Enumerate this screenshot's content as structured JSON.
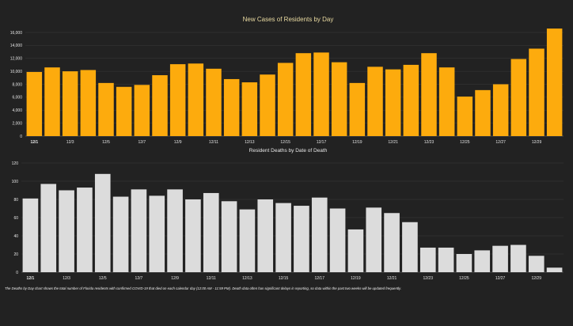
{
  "colors": {
    "cases_bar": "#fdab0d",
    "deaths_bar": "#dcdcdc"
  },
  "chart_data": [
    {
      "type": "bar",
      "title": "New Cases of Residents by Day",
      "categories": [
        "12/1",
        "12/2",
        "12/3",
        "12/4",
        "12/5",
        "12/6",
        "12/7",
        "12/8",
        "12/9",
        "12/10",
        "12/11",
        "12/12",
        "12/13",
        "12/14",
        "12/15",
        "12/16",
        "12/17",
        "12/18",
        "12/19",
        "12/20",
        "12/21",
        "12/22",
        "12/23",
        "12/24",
        "12/25",
        "12/26",
        "12/27",
        "12/28",
        "12/29",
        "12/30"
      ],
      "x_tick_labels": [
        "12/1",
        "12/3",
        "12/5",
        "12/7",
        "12/9",
        "12/11",
        "12/13",
        "12/15",
        "12/17",
        "12/19",
        "12/21",
        "12/23",
        "12/25",
        "12/27",
        "12/29"
      ],
      "values": [
        9900,
        10600,
        10000,
        10200,
        8200,
        7600,
        7900,
        9400,
        11100,
        11200,
        10400,
        8800,
        8300,
        9500,
        11300,
        12800,
        12900,
        11400,
        8200,
        10700,
        10300,
        11000,
        12800,
        10600,
        6100,
        7100,
        8000,
        11900,
        13500,
        16600
      ],
      "ylim": [
        0,
        16000
      ],
      "y_ticks": [
        "0",
        "2,000",
        "4,000",
        "6,000",
        "8,000",
        "10,000",
        "12,000",
        "14,000",
        "16,000"
      ],
      "grid": true,
      "legend": "none"
    },
    {
      "type": "bar",
      "title": "Resident Deaths by Date of Death",
      "categories": [
        "12/1",
        "12/2",
        "12/3",
        "12/4",
        "12/5",
        "12/6",
        "12/7",
        "12/8",
        "12/9",
        "12/10",
        "12/11",
        "12/12",
        "12/13",
        "12/14",
        "12/15",
        "12/16",
        "12/17",
        "12/18",
        "12/19",
        "12/20",
        "12/21",
        "12/22",
        "12/23",
        "12/24",
        "12/25",
        "12/26",
        "12/27",
        "12/28",
        "12/29",
        "12/30"
      ],
      "x_tick_labels": [
        "12/1",
        "12/3",
        "12/5",
        "12/7",
        "12/9",
        "12/11",
        "12/13",
        "12/15",
        "12/17",
        "12/19",
        "12/21",
        "12/23",
        "12/25",
        "12/27",
        "12/29"
      ],
      "values": [
        81,
        97,
        90,
        93,
        108,
        83,
        91,
        84,
        91,
        80,
        87,
        78,
        69,
        80,
        76,
        73,
        82,
        70,
        47,
        71,
        65,
        55,
        27,
        27,
        20,
        24,
        29,
        30,
        18,
        5
      ],
      "ylim": [
        0,
        120
      ],
      "y_ticks": [
        "0",
        "20",
        "40",
        "60",
        "80",
        "100",
        "120"
      ],
      "grid": true,
      "legend": "none"
    }
  ],
  "footnote": "The Deaths by Day chart shows the total number of Florida residents with confirmed COVID-19 that died on each calendar day (12:00 AM - 11:59 PM). Death data often has significant delays in reporting, so data within the past two weeks will be updated frequently."
}
